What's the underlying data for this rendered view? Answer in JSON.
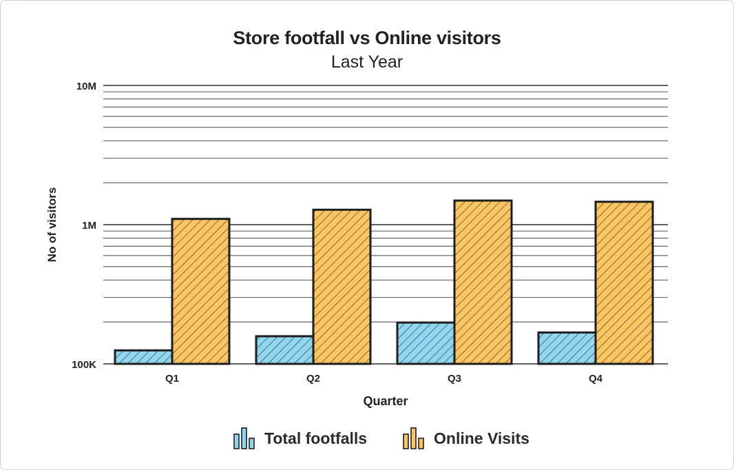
{
  "chart_data": {
    "type": "bar",
    "title": "Store footfall vs Online visitors",
    "subtitle": "Last Year",
    "xlabel": "Quarter",
    "ylabel": "No of visitors",
    "yscale": "log",
    "ylim": [
      100000,
      10000000
    ],
    "yticks": [
      {
        "value": 100000,
        "label": "100K"
      },
      {
        "value": 1000000,
        "label": "1M"
      },
      {
        "value": 10000000,
        "label": "10M"
      }
    ],
    "categories": [
      "Q1",
      "Q2",
      "Q3",
      "Q4"
    ],
    "series": [
      {
        "name": "Total footfalls",
        "color": "#8fd6ee",
        "values": [
          125000,
          158000,
          198000,
          168000
        ]
      },
      {
        "name": "Online Visits",
        "color": "#fbc661",
        "values": [
          1100000,
          1280000,
          1490000,
          1460000
        ]
      }
    ],
    "grid": "horizontal",
    "legend": "bottom-center"
  }
}
